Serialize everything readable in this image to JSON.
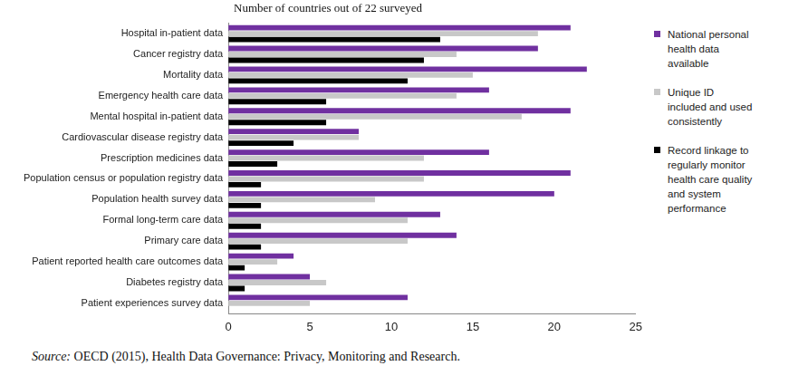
{
  "chart_data": {
    "type": "bar",
    "orientation": "horizontal",
    "title": "Number of countries out of 22 surveyed",
    "source_label": "Source:",
    "source": "OECD (2015), Health Data Governance: Privacy, Monitoring and Research.",
    "categories": [
      "Hospital in-patient data",
      "Cancer registry data",
      "Mortality data",
      "Emergency health care data",
      "Mental hospital in-patient data",
      "Cardiovascular disease registry data",
      "Prescription medicines data",
      "Population census or population registry data",
      "Population health survey data",
      "Formal long-term care data",
      "Primary care data",
      "Patient reported health care outcomes data",
      "Diabetes registry data",
      "Patient experiences survey data"
    ],
    "series": [
      {
        "name": "National personal health data available",
        "color": "#7030a0",
        "values": [
          21,
          19,
          22,
          16,
          21,
          8,
          16,
          21,
          20,
          13,
          14,
          4,
          5,
          11
        ]
      },
      {
        "name": "Unique ID included and used consistently",
        "color": "#c8c8c8",
        "values": [
          19,
          14,
          15,
          14,
          18,
          8,
          12,
          12,
          9,
          11,
          11,
          3,
          6,
          5
        ]
      },
      {
        "name": "Record linkage to regularly monitor health care quality and system performance",
        "color": "#000000",
        "values": [
          13,
          12,
          11,
          6,
          6,
          4,
          3,
          2,
          2,
          2,
          2,
          1,
          1,
          0
        ]
      }
    ],
    "xlim": [
      0,
      25
    ],
    "xticks": [
      0,
      5,
      10,
      15,
      20,
      25
    ],
    "grid": false,
    "legend": "right"
  }
}
